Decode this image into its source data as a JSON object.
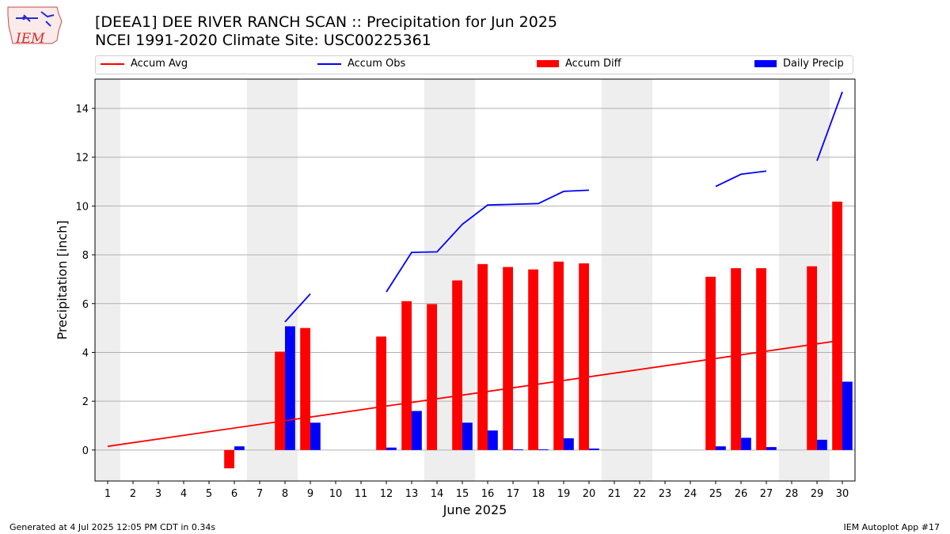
{
  "logo": {
    "text": "IEM"
  },
  "header": {
    "title_line1": "[DEEA1] DEE RIVER RANCH SCAN :: Precipitation for Jun 2025",
    "title_line2": "NCEI 1991-2020 Climate Site: USC00225361"
  },
  "legend": {
    "accum_avg": "Accum Avg",
    "accum_obs": "Accum Obs",
    "accum_diff": "Accum Diff",
    "daily_precip": "Daily Precip"
  },
  "footer": {
    "generated": "Generated at 4 Jul 2025 12:05 PM CDT in 0.34s",
    "app": "IEM Autoplot App #17"
  },
  "colors": {
    "accum_avg": "#ff0000",
    "accum_obs": "#0000ff",
    "accum_diff": "#ff0000",
    "daily_precip": "#0000ff",
    "weekend_shade": "#eeeeee",
    "grid": "#b0b0b0"
  },
  "chart_data": {
    "type": "bar",
    "xlabel": "June 2025",
    "ylabel": "Precipitation [inch]",
    "xlim": [
      0.5,
      30.5
    ],
    "ylim": [
      -1.27,
      15.2
    ],
    "x_ticks": [
      1,
      2,
      3,
      4,
      5,
      6,
      7,
      8,
      9,
      10,
      11,
      12,
      13,
      14,
      15,
      16,
      17,
      18,
      19,
      20,
      21,
      22,
      23,
      24,
      25,
      26,
      27,
      28,
      29,
      30
    ],
    "y_ticks": [
      0,
      2,
      4,
      6,
      8,
      10,
      12,
      14
    ],
    "grid": "horizontal",
    "legend_position": "top",
    "weekend_ranges": [
      [
        0.5,
        1.5
      ],
      [
        6.5,
        8.5
      ],
      [
        13.5,
        15.5
      ],
      [
        20.5,
        22.5
      ],
      [
        27.5,
        29.5
      ]
    ],
    "accum_avg": {
      "name": "Accum Avg",
      "x": [
        1,
        30
      ],
      "values": [
        0.15,
        4.5
      ]
    },
    "accum_obs": {
      "name": "Accum Obs",
      "segments": [
        {
          "x": [
            8,
            9
          ],
          "values": [
            5.25,
            6.4
          ]
        },
        {
          "x": [
            12,
            13,
            14,
            15,
            16,
            17,
            18,
            19,
            20
          ],
          "values": [
            6.48,
            8.1,
            8.12,
            9.25,
            10.04,
            10.07,
            10.1,
            10.6,
            10.65
          ]
        },
        {
          "x": [
            25,
            26,
            27
          ],
          "values": [
            10.8,
            11.3,
            11.43
          ]
        },
        {
          "x": [
            29,
            30
          ],
          "values": [
            11.85,
            14.68
          ]
        }
      ]
    },
    "accum_diff": {
      "name": "Accum Diff",
      "days": [
        6,
        8,
        9,
        12,
        13,
        14,
        15,
        16,
        17,
        18,
        19,
        20,
        25,
        26,
        27,
        29,
        30
      ],
      "values": [
        -0.75,
        4.03,
        5.0,
        4.65,
        6.1,
        5.98,
        6.95,
        7.62,
        7.5,
        7.4,
        7.72,
        7.65,
        7.1,
        7.45,
        7.45,
        7.53,
        10.18
      ]
    },
    "daily_precip": {
      "name": "Daily Precip",
      "days": [
        6,
        8,
        9,
        12,
        13,
        15,
        16,
        17,
        18,
        19,
        20,
        25,
        26,
        27,
        29,
        30
      ],
      "values": [
        0.15,
        5.07,
        1.12,
        0.1,
        1.6,
        1.12,
        0.8,
        0.03,
        0.03,
        0.48,
        0.06,
        0.15,
        0.5,
        0.12,
        0.42,
        2.8
      ]
    }
  }
}
